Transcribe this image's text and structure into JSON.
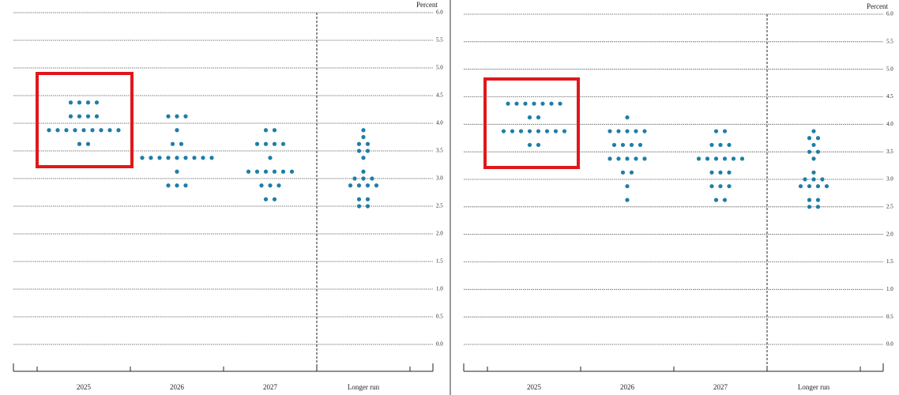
{
  "chart_data": [
    {
      "type": "dot",
      "unit_label": "Percent",
      "color": "#1f7ea6",
      "categories": [
        "2025",
        "2026",
        "2027",
        "Longer run"
      ],
      "values": [
        [
          4.375,
          4.375,
          4.375,
          4.375,
          4.125,
          4.125,
          4.125,
          4.125,
          3.875,
          3.875,
          3.875,
          3.875,
          3.875,
          3.875,
          3.875,
          3.875,
          3.875,
          3.625,
          3.625
        ],
        [
          4.125,
          4.125,
          4.125,
          3.875,
          3.625,
          3.625,
          3.375,
          3.375,
          3.375,
          3.375,
          3.375,
          3.375,
          3.375,
          3.375,
          3.375,
          3.125,
          2.875,
          2.875,
          2.875
        ],
        [
          3.875,
          3.875,
          3.625,
          3.625,
          3.625,
          3.625,
          3.375,
          3.125,
          3.125,
          3.125,
          3.125,
          3.125,
          3.125,
          2.875,
          2.875,
          2.875,
          2.625,
          2.625
        ],
        [
          3.875,
          3.75,
          3.625,
          3.625,
          3.5,
          3.5,
          3.375,
          3.125,
          3.0,
          3.0,
          3.0,
          2.875,
          2.875,
          2.875,
          2.875,
          2.625,
          2.625,
          2.5,
          2.5
        ]
      ],
      "ylim": [
        0,
        6
      ],
      "yticks": [
        {
          "value": 0,
          "label": "0.0"
        },
        0.5,
        {
          "value": 1,
          "label": "1.0"
        },
        1.5,
        {
          "value": 2,
          "label": "2.0"
        },
        2.5,
        {
          "value": 3,
          "label": "3.0"
        },
        3.5,
        {
          "value": 4,
          "label": "4.0"
        },
        4.5,
        {
          "value": 5,
          "label": "5.0"
        },
        5.5,
        {
          "value": 6,
          "label": "6.0"
        }
      ],
      "grid": true
    },
    {
      "type": "dot",
      "unit_label": "Percent",
      "color": "#1f7ea6",
      "categories": [
        "2025",
        "2026",
        "2027",
        "Longer run"
      ],
      "values": [
        [
          4.375,
          4.375,
          4.375,
          4.375,
          4.375,
          4.375,
          4.375,
          4.125,
          4.125,
          3.875,
          3.875,
          3.875,
          3.875,
          3.875,
          3.875,
          3.875,
          3.875,
          3.625,
          3.625
        ],
        [
          4.125,
          3.875,
          3.875,
          3.875,
          3.875,
          3.875,
          3.625,
          3.625,
          3.625,
          3.625,
          3.375,
          3.375,
          3.375,
          3.375,
          3.375,
          3.125,
          3.125,
          2.875,
          2.625
        ],
        [
          3.875,
          3.875,
          3.625,
          3.625,
          3.625,
          3.375,
          3.375,
          3.375,
          3.375,
          3.375,
          3.375,
          3.125,
          3.125,
          3.125,
          2.875,
          2.875,
          2.875,
          2.625,
          2.625
        ],
        [
          3.875,
          3.75,
          3.75,
          3.625,
          3.5,
          3.5,
          3.375,
          3.125,
          3.0,
          3.0,
          3.0,
          2.875,
          2.875,
          2.875,
          2.875,
          2.625,
          2.625,
          2.5,
          2.5
        ]
      ],
      "ylim": [
        0,
        6
      ],
      "yticks": [
        {
          "value": 0,
          "label": "0.0"
        },
        0.5,
        {
          "value": 1,
          "label": "1.0"
        },
        1.5,
        {
          "value": 2,
          "label": "2.0"
        },
        2.5,
        {
          "value": 3,
          "label": "3.0"
        },
        3.5,
        {
          "value": 4,
          "label": "4.0"
        },
        4.5,
        {
          "value": 5,
          "label": "5.0"
        },
        5.5,
        {
          "value": 6,
          "label": "6.0"
        }
      ],
      "grid": true
    }
  ]
}
